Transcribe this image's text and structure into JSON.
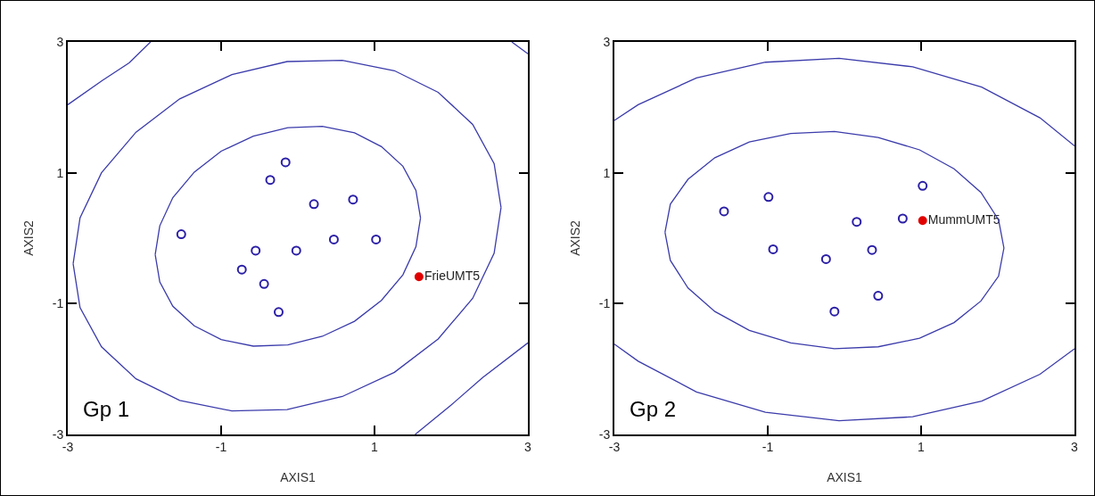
{
  "chart_data": [
    {
      "type": "scatter",
      "xlabel": "AXIS1",
      "ylabel": "AXIS2",
      "xlim": [
        -3,
        3
      ],
      "ylim": [
        -3,
        3
      ],
      "xticks": [
        -3,
        -1,
        1,
        3
      ],
      "yticks": [
        -3,
        -1,
        1,
        3
      ],
      "marker": "circle",
      "annotations": [
        "Gp 1"
      ],
      "series": [
        {
          "color": "#2b1fa6",
          "x": [
            -1.52,
            -0.16,
            -0.36,
            0.21,
            0.72,
            0.47,
            1.02,
            -0.55,
            -0.02,
            -0.73,
            -0.44,
            -0.25
          ],
          "values": [
            0.06,
            1.16,
            0.89,
            0.52,
            0.59,
            -0.02,
            -0.02,
            -0.19,
            -0.19,
            -0.48,
            -0.7,
            -1.13
          ]
        },
        {
          "name": "FrieUMT5",
          "color": "#e00000",
          "x": [
            1.58
          ],
          "values": [
            -0.59
          ]
        },
        {
          "type": "line",
          "marker": "none",
          "color": "#3b3bab",
          "x": [
            -1.86,
            -1.8,
            -1.63,
            -1.35,
            -1.0,
            -0.58,
            -0.13,
            0.32,
            0.74,
            1.09,
            1.37,
            1.54,
            1.6,
            null,
            -1.86,
            -1.8,
            -1.63,
            -1.35,
            -1.0,
            -0.58,
            -0.13,
            0.32,
            0.74,
            1.09,
            1.37,
            1.54,
            1.6
          ],
          "values": [
            -0.25,
            0.19,
            0.62,
            1.01,
            1.33,
            1.56,
            1.69,
            1.71,
            1.61,
            1.4,
            1.1,
            0.73,
            0.31,
            null,
            -0.25,
            -0.67,
            -1.04,
            -1.34,
            -1.55,
            -1.65,
            -1.63,
            -1.5,
            -1.27,
            -0.95,
            -0.56,
            -0.13,
            0.31
          ]
        },
        {
          "type": "line",
          "marker": "none",
          "color": "#3b3bab",
          "x": [
            -2.93,
            -2.84,
            -2.56,
            -2.11,
            -1.54,
            -0.86,
            -0.14,
            0.58,
            1.26,
            1.83,
            2.28,
            2.56,
            2.65,
            null,
            -2.93,
            -2.84,
            -2.56,
            -2.11,
            -1.54,
            -0.86,
            -0.14,
            0.58,
            1.26,
            1.83,
            2.28,
            2.56,
            2.65
          ],
          "values": [
            -0.39,
            0.31,
            1.0,
            1.62,
            2.13,
            2.5,
            2.7,
            2.72,
            2.56,
            2.23,
            1.74,
            1.14,
            0.47,
            null,
            -0.39,
            -1.06,
            -1.66,
            -2.15,
            -2.48,
            -2.64,
            -2.62,
            -2.42,
            -2.05,
            -1.54,
            -0.92,
            -0.23,
            0.47
          ]
        },
        {
          "type": "line",
          "marker": "none",
          "color": "#3b3bab",
          "x": [
            -3,
            -2.55,
            -2.2,
            -1.92,
            null,
            2.79,
            3,
            null,
            1.53,
            2.0,
            2.41,
            3
          ],
          "values": [
            2.04,
            2.41,
            2.68,
            3,
            null,
            3,
            2.82,
            null,
            -3,
            -2.55,
            -2.13,
            -1.6
          ]
        }
      ]
    },
    {
      "type": "scatter",
      "xlabel": "AXIS1",
      "ylabel": "AXIS2",
      "xlim": [
        -3,
        3
      ],
      "ylim": [
        -3,
        3
      ],
      "xticks": [
        -3,
        -1,
        1,
        3
      ],
      "yticks": [
        -3,
        -1,
        1,
        3
      ],
      "marker": "circle",
      "annotations": [
        "Gp 2"
      ],
      "series": [
        {
          "color": "#2b1fa6",
          "x": [
            -1.57,
            -0.99,
            1.02,
            0.76,
            0.16,
            -0.93,
            -0.24,
            0.36,
            0.44,
            -0.13
          ],
          "values": [
            0.41,
            0.63,
            0.8,
            0.3,
            0.25,
            -0.17,
            -0.32,
            -0.18,
            -0.88,
            -1.12
          ]
        },
        {
          "name": "MummUMT5",
          "color": "#e00000",
          "x": [
            1.02
          ],
          "values": [
            0.27
          ]
        },
        {
          "type": "line",
          "marker": "none",
          "color": "#3b3bab",
          "x": [
            -2.34,
            -2.27,
            -2.04,
            -1.69,
            -1.24,
            -0.7,
            -0.13,
            0.44,
            0.98,
            1.43,
            1.78,
            2.01,
            2.08,
            null,
            -2.34,
            -2.27,
            -2.04,
            -1.69,
            -1.24,
            -0.7,
            -0.13,
            0.44,
            0.98,
            1.43,
            1.78,
            2.01,
            2.08
          ],
          "values": [
            0.09,
            0.52,
            0.9,
            1.23,
            1.47,
            1.6,
            1.63,
            1.54,
            1.35,
            1.06,
            0.7,
            0.28,
            -0.15,
            null,
            0.09,
            -0.34,
            -0.76,
            -1.12,
            -1.41,
            -1.6,
            -1.69,
            -1.66,
            -1.53,
            -1.29,
            -0.96,
            -0.58,
            -0.15
          ]
        },
        {
          "type": "line",
          "marker": "none",
          "color": "#3b3bab",
          "x": [
            -3,
            -2.69,
            -1.93,
            -1.03,
            -0.07,
            0.89,
            1.79,
            2.55,
            3,
            null,
            -3,
            -2.69,
            -1.93,
            -1.03,
            -0.07,
            0.89,
            1.79,
            2.55,
            3
          ],
          "values": [
            1.8,
            2.04,
            2.45,
            2.69,
            2.75,
            2.62,
            2.31,
            1.84,
            1.41,
            null,
            -1.62,
            -1.88,
            -2.35,
            -2.66,
            -2.79,
            -2.73,
            -2.49,
            -2.08,
            -1.69
          ]
        }
      ]
    }
  ]
}
